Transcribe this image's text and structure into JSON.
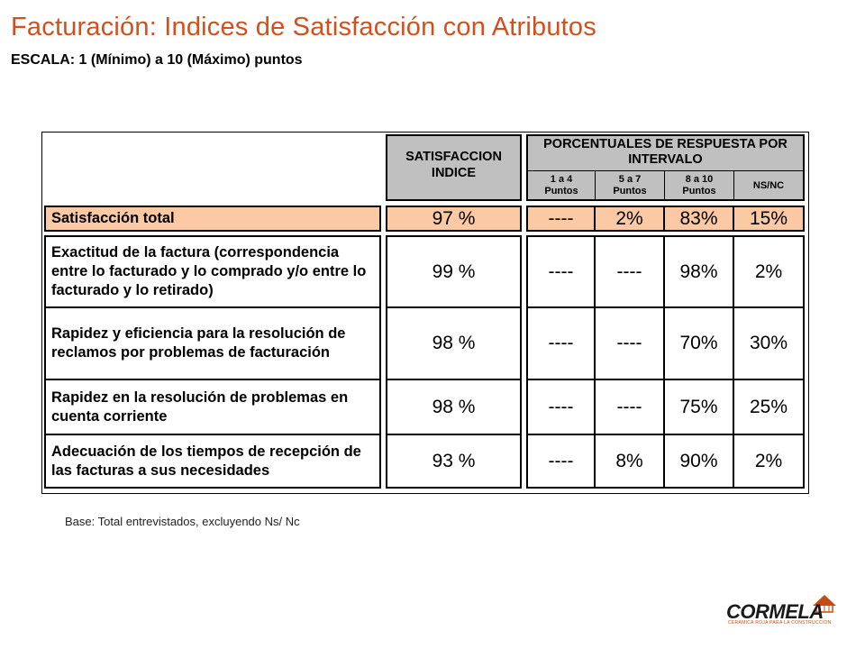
{
  "title": "Facturación: Indices de Satisfacción con Atributos",
  "subtitle": "ESCALA: 1 (Mínimo) a 10 (Máximo) puntos",
  "table": {
    "header": {
      "satisfaccion_indice": "SATISFACCION INDICE",
      "porcentuales": "PORCENTUALES DE RESPUESTA POR INTERVALO",
      "intervals": [
        "1 a 4 Puntos",
        "5 a 7 Puntos",
        "8 a 10 Puntos",
        "NS/NC"
      ]
    },
    "total_row": {
      "label": "Satisfacción total",
      "indice": "97 %",
      "values": [
        "----",
        "2%",
        "83%",
        "15%"
      ]
    },
    "rows": [
      {
        "label": "Exactitud de la factura (correspondencia entre lo facturado y lo comprado y/o entre lo facturado y lo retirado)",
        "indice": "99 %",
        "values": [
          "----",
          "----",
          "98%",
          "2%"
        ]
      },
      {
        "label": "Rapidez y eficiencia para la resolución de reclamos por problemas de facturación",
        "indice": "98 %",
        "values": [
          "----",
          "----",
          "70%",
          "30%"
        ]
      },
      {
        "label": "Rapidez en la resolución de problemas en cuenta corriente",
        "indice": "98 %",
        "values": [
          "----",
          "----",
          "75%",
          "25%"
        ]
      },
      {
        "label": "Adecuación de los tiempos de recepción de las facturas a sus necesidades",
        "indice": "93 %",
        "values": [
          "----",
          "8%",
          "90%",
          "2%"
        ]
      }
    ]
  },
  "footnote": "Base: Total entrevistados, excluyendo Ns/ Nc",
  "logo": {
    "name": "CORMELA",
    "tagline": "CERAMICA ROJA PARA LA CONSTRUCCION"
  },
  "colors": {
    "title": "#d2501e",
    "header_bg": "#c0c0c0",
    "total_row_bg": "#fbc9a4"
  }
}
